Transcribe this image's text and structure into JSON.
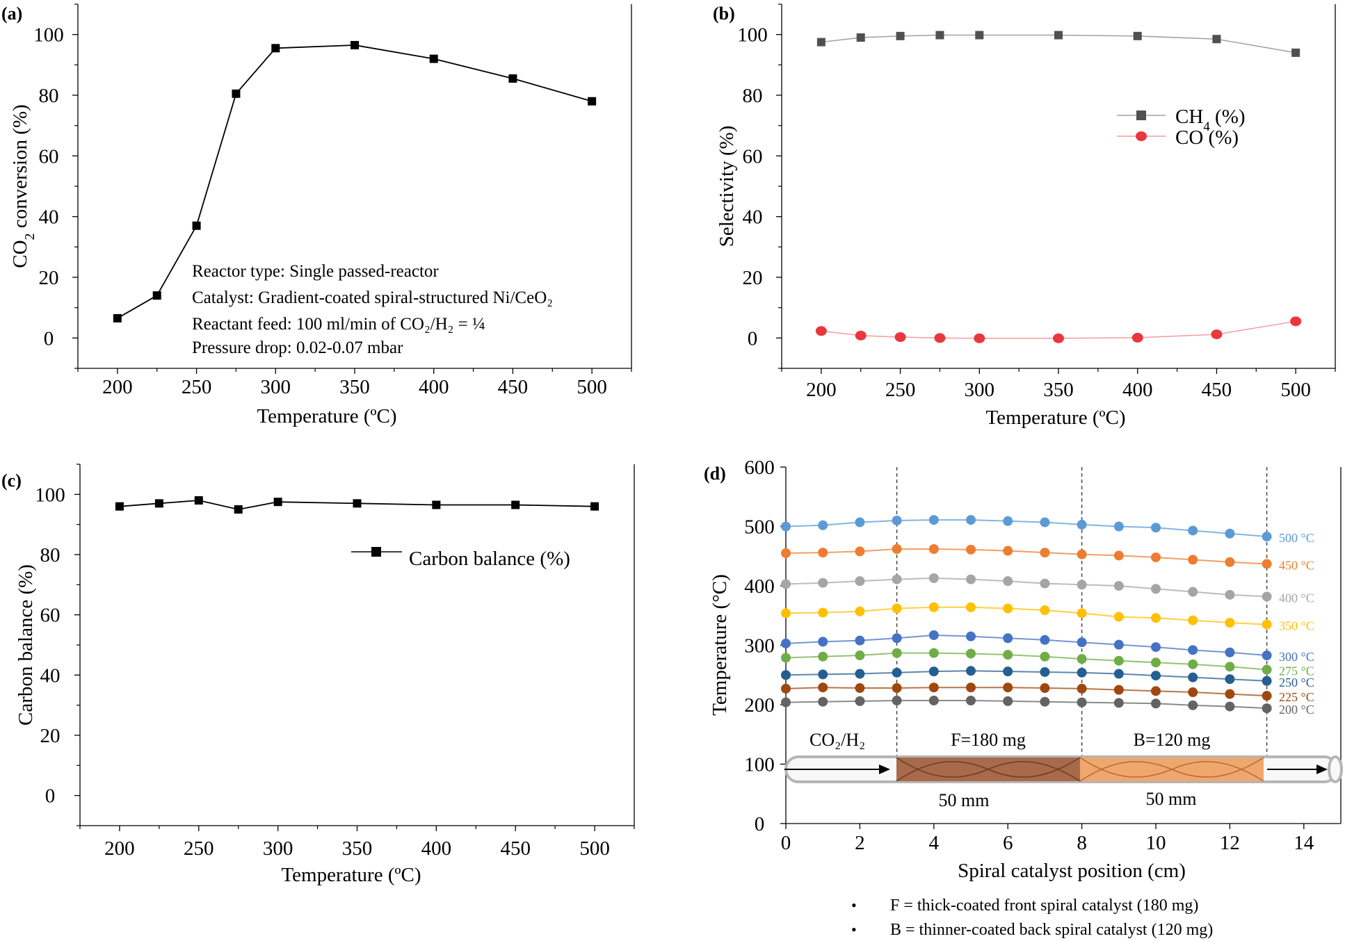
{
  "chart_data": [
    {
      "panel": "(a)",
      "type": "line",
      "xlabel": "Temperature (ºC)",
      "ylabel": "CO₂ conversion (%)",
      "xlim": [
        175,
        525
      ],
      "ylim": [
        -10,
        110
      ],
      "xticks": [
        "200",
        "250",
        "300",
        "350",
        "400",
        "450",
        "500"
      ],
      "yticks": [
        "0",
        "20",
        "40",
        "60",
        "80",
        "100"
      ],
      "series": [
        {
          "name": "CO2 conversion",
          "color": "#000000",
          "x": [
            200,
            225,
            250,
            275,
            300,
            350,
            400,
            450,
            500
          ],
          "y": [
            6.5,
            14,
            37,
            80.5,
            95.5,
            96.5,
            92,
            85.5,
            78
          ]
        }
      ],
      "annotations": [
        "Reactor type: Single passed-reactor",
        "Catalyst: Gradient-coated spiral-structured Ni/CeO₂",
        "Reactant feed: 100 ml/min of CO₂/H₂ = ¼",
        "Pressure drop: 0.02-0.07 mbar"
      ]
    },
    {
      "panel": "(b)",
      "type": "line",
      "xlabel": "Temperature (ºC)",
      "ylabel": "Selectivity (%)",
      "xlim": [
        175,
        525
      ],
      "ylim": [
        -10,
        110
      ],
      "xticks": [
        "200",
        "250",
        "300",
        "350",
        "400",
        "450",
        "500"
      ],
      "yticks": [
        "0",
        "20",
        "40",
        "60",
        "80",
        "100"
      ],
      "legend_position": "upper-right",
      "series": [
        {
          "name": "CH₄ (%)",
          "color": "#505050",
          "marker": "square",
          "x": [
            200,
            225,
            250,
            275,
            300,
            350,
            400,
            450,
            500
          ],
          "y": [
            97.5,
            99,
            99.5,
            99.8,
            99.8,
            99.8,
            99.5,
            98.5,
            94
          ]
        },
        {
          "name": "CO (%)",
          "color": "#e8383d",
          "marker": "circle",
          "x": [
            200,
            225,
            250,
            275,
            300,
            350,
            400,
            450,
            500
          ],
          "y": [
            2.3,
            0.8,
            0.3,
            0,
            -0.1,
            -0.1,
            0.1,
            1.2,
            5.5
          ]
        }
      ]
    },
    {
      "panel": "(c)",
      "type": "line",
      "xlabel": "Temperature (ºC)",
      "ylabel": "Carbon balance (%)",
      "xlim": [
        175,
        525
      ],
      "ylim": [
        -10,
        110
      ],
      "xticks": [
        "200",
        "250",
        "300",
        "350",
        "400",
        "450",
        "500"
      ],
      "yticks": [
        "0",
        "20",
        "40",
        "60",
        "80",
        "100"
      ],
      "legend_position": "upper-right",
      "series": [
        {
          "name": "Carbon balance (%)",
          "color": "#000000",
          "marker": "square",
          "x": [
            200,
            225,
            250,
            275,
            300,
            350,
            400,
            450,
            500
          ],
          "y": [
            96,
            97,
            98,
            95,
            97.5,
            97,
            96.5,
            96.5,
            96
          ]
        }
      ]
    },
    {
      "panel": "(d)",
      "type": "line",
      "xlabel": "Spiral catalyst position (cm)",
      "ylabel": "Temperature (°C)",
      "xlim": [
        0,
        15
      ],
      "ylim": [
        0,
        600
      ],
      "xticks": [
        "0",
        "2",
        "4",
        "6",
        "8",
        "10",
        "12",
        "14"
      ],
      "yticks": [
        "0",
        "100",
        "200",
        "300",
        "400",
        "500",
        "600"
      ],
      "dividers_x": [
        3,
        8,
        13
      ],
      "series": [
        {
          "name": "500 °C",
          "color": "#5b9bd5",
          "y": [
            500,
            502,
            507,
            510,
            511,
            511,
            509,
            507,
            503,
            500,
            498,
            493,
            488,
            483
          ]
        },
        {
          "name": "450 °C",
          "color": "#ed7d31",
          "y": [
            455,
            456,
            458,
            462,
            462,
            461,
            459,
            456,
            453,
            451,
            448,
            444,
            440,
            437
          ]
        },
        {
          "name": "400 °C",
          "color": "#a5a5a5",
          "y": [
            403,
            405,
            408,
            411,
            413,
            411,
            408,
            404,
            402,
            400,
            395,
            390,
            385,
            382
          ]
        },
        {
          "name": "350 °C",
          "color": "#ffc000",
          "y": [
            354,
            355,
            357,
            362,
            364,
            364,
            362,
            359,
            354,
            348,
            346,
            342,
            338,
            335
          ]
        },
        {
          "name": "300 °C",
          "color": "#4472c4",
          "y": [
            303,
            306,
            308,
            312,
            317,
            315,
            312,
            309,
            305,
            301,
            297,
            292,
            288,
            283
          ]
        },
        {
          "name": "275 °C",
          "color": "#70ad47",
          "y": [
            279,
            281,
            283,
            287,
            287,
            286,
            284,
            281,
            277,
            274,
            271,
            268,
            264,
            259
          ]
        },
        {
          "name": "250 °C",
          "color": "#255e91",
          "y": [
            250,
            251,
            252,
            254,
            256,
            257,
            256,
            255,
            254,
            252,
            249,
            246,
            243,
            240
          ]
        },
        {
          "name": "225 °C",
          "color": "#9e480e",
          "y": [
            227,
            229,
            228,
            228,
            229,
            229,
            229,
            228,
            227,
            225,
            223,
            221,
            218,
            215
          ]
        },
        {
          "name": "200 °C",
          "color": "#636363",
          "y": [
            204,
            205,
            206,
            207,
            207,
            207,
            206,
            205,
            204,
            203,
            202,
            199,
            197,
            194
          ]
        }
      ],
      "x": [
        0,
        1,
        2,
        3,
        4,
        5,
        6,
        7,
        8,
        9,
        10,
        11,
        12,
        13
      ],
      "annotations": {
        "inlet": "CO₂/H₂",
        "front_label": "F=180 mg",
        "back_label": "B=120 mg",
        "front_length": "50 mm",
        "back_length": "50 mm"
      },
      "colors": {
        "front_spiral": "#a86a4a",
        "back_spiral": "#f0a76e"
      },
      "footnotes": [
        "F = thick-coated front spiral catalyst (180 mg)",
        "B = thinner-coated back spiral catalyst (120 mg)"
      ]
    }
  ]
}
